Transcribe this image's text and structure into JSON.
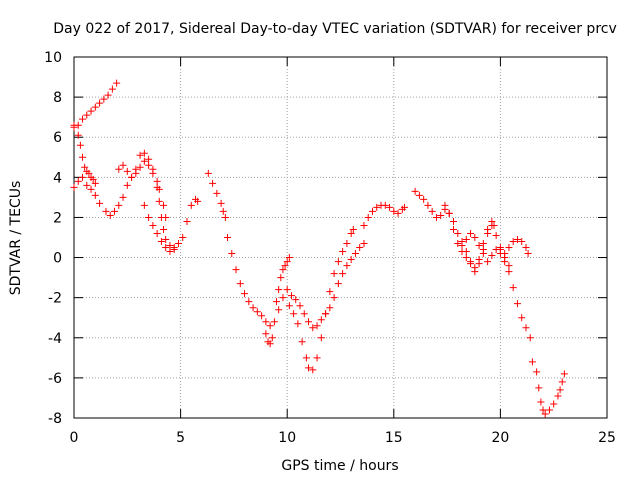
{
  "chart_data": {
    "type": "scatter",
    "title": "Day 022 of 2017, Sidereal Day-to-day VTEC variation (SDTVAR) for receiver prcv",
    "xlabel": "GPS time / hours",
    "ylabel": "SDTVAR / TECUs",
    "xlim": [
      0,
      25
    ],
    "ylim": [
      -8,
      10
    ],
    "xticks": [
      0,
      5,
      10,
      15,
      20,
      25
    ],
    "yticks": [
      -8,
      -6,
      -4,
      -2,
      0,
      2,
      4,
      6,
      8,
      10
    ],
    "grid": true,
    "marker": "+",
    "color": "#ff0000",
    "segments": [
      [
        [
          0.0,
          3.5
        ],
        [
          0.2,
          3.8
        ],
        [
          0.4,
          4.0
        ],
        [
          0.6,
          3.6
        ],
        [
          0.8,
          3.4
        ],
        [
          1.0,
          3.1
        ],
        [
          1.2,
          2.7
        ],
        [
          1.5,
          2.3
        ],
        [
          1.7,
          2.1
        ],
        [
          1.9,
          2.3
        ],
        [
          2.1,
          2.6
        ],
        [
          2.3,
          3.0
        ],
        [
          2.5,
          3.6
        ],
        [
          2.7,
          4.0
        ],
        [
          2.9,
          4.2
        ],
        [
          3.1,
          4.5
        ],
        [
          3.3,
          4.8
        ],
        [
          3.5,
          4.6
        ],
        [
          3.7,
          4.2
        ],
        [
          3.9,
          3.5
        ],
        [
          4.0,
          2.8
        ],
        [
          4.1,
          2.0
        ],
        [
          4.2,
          1.4
        ],
        [
          4.3,
          0.9
        ],
        [
          4.5,
          0.6
        ],
        [
          4.7,
          0.5
        ],
        [
          4.9,
          0.7
        ],
        [
          5.1,
          1.0
        ],
        [
          5.3,
          1.8
        ],
        [
          5.5,
          2.6
        ],
        [
          5.7,
          2.9
        ],
        [
          5.8,
          2.8
        ]
      ],
      [
        [
          0.0,
          6.5
        ],
        [
          0.2,
          6.6
        ],
        [
          0.4,
          6.9
        ],
        [
          0.6,
          7.1
        ],
        [
          0.8,
          7.3
        ],
        [
          1.0,
          7.5
        ],
        [
          1.2,
          7.7
        ],
        [
          1.4,
          7.9
        ],
        [
          1.6,
          8.1
        ],
        [
          1.8,
          8.4
        ],
        [
          2.0,
          8.7
        ]
      ],
      [
        [
          0.0,
          6.6
        ],
        [
          0.2,
          6.1
        ],
        [
          0.3,
          5.6
        ],
        [
          0.4,
          5.0
        ],
        [
          0.5,
          4.5
        ],
        [
          0.6,
          4.3
        ],
        [
          0.7,
          4.2
        ],
        [
          0.8,
          4.0
        ],
        [
          0.9,
          3.9
        ],
        [
          1.0,
          3.7
        ]
      ],
      [
        [
          2.1,
          4.4
        ],
        [
          2.3,
          4.6
        ],
        [
          2.5,
          4.3
        ],
        [
          2.7,
          4.0
        ],
        [
          2.9,
          4.4
        ],
        [
          3.1,
          5.1
        ],
        [
          3.3,
          5.2
        ],
        [
          3.5,
          4.9
        ],
        [
          3.7,
          4.4
        ],
        [
          3.9,
          3.8
        ],
        [
          4.0,
          3.4
        ],
        [
          4.2,
          2.6
        ],
        [
          4.3,
          2.0
        ]
      ],
      [
        [
          3.3,
          2.6
        ],
        [
          3.5,
          2.0
        ],
        [
          3.7,
          1.6
        ],
        [
          3.9,
          1.2
        ],
        [
          4.1,
          0.8
        ],
        [
          4.3,
          0.5
        ],
        [
          4.5,
          0.3
        ],
        [
          4.7,
          0.4
        ]
      ],
      [
        [
          6.3,
          4.2
        ],
        [
          6.5,
          3.7
        ],
        [
          6.7,
          3.2
        ],
        [
          6.9,
          2.7
        ],
        [
          7.0,
          2.3
        ],
        [
          7.1,
          2.0
        ]
      ],
      [
        [
          7.2,
          1.0
        ],
        [
          7.4,
          0.2
        ],
        [
          7.6,
          -0.6
        ],
        [
          7.8,
          -1.3
        ],
        [
          8.0,
          -1.8
        ],
        [
          8.2,
          -2.2
        ],
        [
          8.4,
          -2.5
        ],
        [
          8.6,
          -2.7
        ],
        [
          8.8,
          -2.9
        ],
        [
          9.0,
          -3.2
        ],
        [
          9.2,
          -3.4
        ],
        [
          9.4,
          -3.2
        ],
        [
          9.6,
          -2.6
        ],
        [
          9.8,
          -2.0
        ],
        [
          10.0,
          -1.6
        ],
        [
          10.2,
          -1.9
        ],
        [
          10.4,
          -2.1
        ],
        [
          10.6,
          -2.4
        ],
        [
          10.8,
          -2.8
        ],
        [
          11.0,
          -3.2
        ],
        [
          11.2,
          -3.5
        ],
        [
          11.4,
          -3.4
        ],
        [
          11.6,
          -3.1
        ],
        [
          11.8,
          -2.8
        ],
        [
          12.0,
          -2.5
        ],
        [
          12.2,
          -2.0
        ],
        [
          12.4,
          -1.3
        ],
        [
          12.6,
          -0.8
        ],
        [
          12.8,
          -0.4
        ],
        [
          13.0,
          -0.1
        ],
        [
          13.2,
          0.2
        ],
        [
          13.4,
          0.5
        ],
        [
          13.6,
          0.7
        ]
      ],
      [
        [
          9.0,
          -3.8
        ],
        [
          9.1,
          -4.2
        ],
        [
          9.2,
          -4.3
        ],
        [
          9.3,
          -4.0
        ]
      ],
      [
        [
          9.5,
          -2.2
        ],
        [
          9.6,
          -1.6
        ],
        [
          9.7,
          -1.0
        ],
        [
          9.8,
          -0.6
        ],
        [
          9.9,
          -0.4
        ],
        [
          10.0,
          -0.2
        ],
        [
          10.1,
          0.0
        ]
      ],
      [
        [
          10.1,
          -2.4
        ],
        [
          10.3,
          -2.8
        ],
        [
          10.5,
          -3.3
        ],
        [
          10.7,
          -4.2
        ],
        [
          10.9,
          -5.0
        ],
        [
          11.0,
          -5.5
        ],
        [
          11.2,
          -5.6
        ],
        [
          11.4,
          -5.0
        ],
        [
          11.6,
          -4.0
        ],
        [
          11.8,
          -2.8
        ],
        [
          12.0,
          -1.7
        ],
        [
          12.2,
          -0.8
        ],
        [
          12.4,
          -0.2
        ],
        [
          12.6,
          0.3
        ],
        [
          12.8,
          0.7
        ],
        [
          13.0,
          1.2
        ],
        [
          13.1,
          1.4
        ]
      ],
      [
        [
          13.6,
          1.6
        ],
        [
          13.8,
          2.0
        ],
        [
          14.0,
          2.3
        ],
        [
          14.2,
          2.5
        ],
        [
          14.4,
          2.6
        ],
        [
          14.6,
          2.6
        ],
        [
          14.8,
          2.5
        ],
        [
          15.0,
          2.3
        ],
        [
          15.2,
          2.2
        ],
        [
          15.4,
          2.4
        ],
        [
          15.5,
          2.5
        ]
      ],
      [
        [
          16.0,
          3.3
        ],
        [
          16.2,
          3.1
        ],
        [
          16.4,
          2.9
        ],
        [
          16.6,
          2.6
        ],
        [
          16.8,
          2.3
        ],
        [
          17.0,
          2.0
        ],
        [
          17.2,
          2.1
        ],
        [
          17.4,
          2.4
        ],
        [
          17.6,
          2.2
        ],
        [
          17.8,
          1.4
        ],
        [
          18.0,
          0.7
        ],
        [
          18.2,
          0.3
        ],
        [
          18.4,
          0.0
        ],
        [
          18.6,
          -0.3
        ],
        [
          18.8,
          -0.5
        ],
        [
          19.0,
          -0.1
        ],
        [
          19.2,
          0.7
        ],
        [
          19.4,
          1.4
        ],
        [
          19.6,
          1.6
        ],
        [
          19.8,
          1.1
        ],
        [
          20.0,
          0.4
        ],
        [
          20.2,
          0.2
        ],
        [
          20.4,
          0.5
        ],
        [
          20.6,
          0.8
        ],
        [
          20.8,
          0.9
        ],
        [
          21.0,
          0.8
        ],
        [
          21.2,
          0.5
        ],
        [
          21.3,
          0.2
        ]
      ],
      [
        [
          17.4,
          2.6
        ],
        [
          17.6,
          2.2
        ],
        [
          17.8,
          1.8
        ],
        [
          18.0,
          1.2
        ],
        [
          18.2,
          0.8
        ],
        [
          18.4,
          0.3
        ],
        [
          18.6,
          -0.2
        ],
        [
          18.8,
          -0.7
        ],
        [
          19.0,
          -0.3
        ],
        [
          19.2,
          0.4
        ],
        [
          19.4,
          1.2
        ],
        [
          19.6,
          1.8
        ],
        [
          19.7,
          1.6
        ]
      ],
      [
        [
          18.2,
          0.6
        ],
        [
          18.4,
          0.9
        ],
        [
          18.6,
          1.2
        ],
        [
          18.8,
          1.0
        ],
        [
          19.0,
          0.6
        ],
        [
          19.2,
          0.2
        ],
        [
          19.4,
          -0.2
        ],
        [
          19.6,
          0.1
        ],
        [
          19.8,
          0.4
        ],
        [
          20.0,
          0.2
        ],
        [
          20.2,
          -0.2
        ],
        [
          20.4,
          -0.4
        ]
      ],
      [
        [
          20.0,
          0.5
        ],
        [
          20.2,
          0.0
        ],
        [
          20.4,
          -0.7
        ],
        [
          20.6,
          -1.5
        ],
        [
          20.8,
          -2.3
        ],
        [
          21.0,
          -3.0
        ],
        [
          21.2,
          -3.5
        ],
        [
          21.4,
          -4.0
        ]
      ],
      [
        [
          21.5,
          -5.2
        ],
        [
          21.7,
          -5.7
        ],
        [
          21.8,
          -6.5
        ],
        [
          21.9,
          -7.2
        ],
        [
          22.0,
          -7.6
        ],
        [
          22.1,
          -7.8
        ],
        [
          22.3,
          -7.6
        ],
        [
          22.5,
          -7.3
        ],
        [
          22.7,
          -6.9
        ],
        [
          22.8,
          -6.6
        ],
        [
          22.9,
          -6.2
        ],
        [
          23.0,
          -5.8
        ]
      ]
    ]
  }
}
